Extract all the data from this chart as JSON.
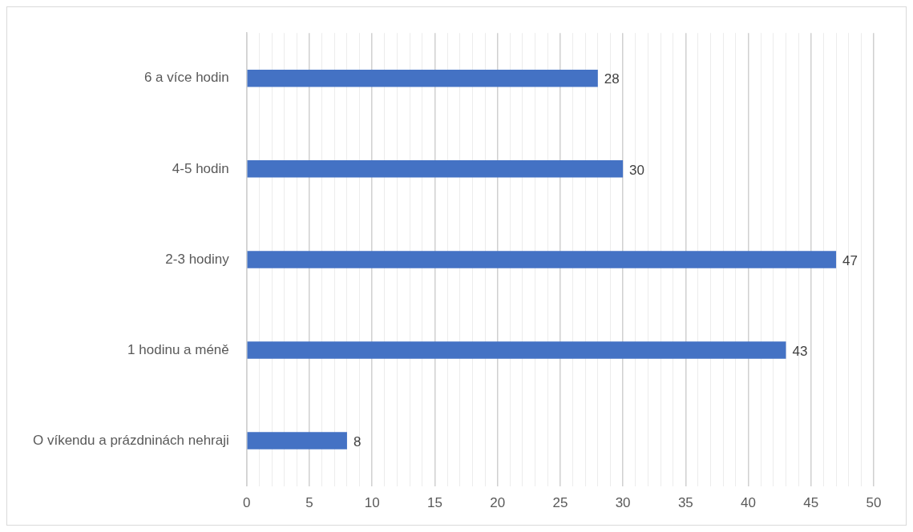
{
  "chart_data": {
    "type": "bar",
    "orientation": "horizontal",
    "categories": [
      "6 a více hodin",
      "4-5 hodin",
      "2-3 hodiny",
      "1 hodinu a méně",
      "O víkendu a prázdninách nehraji"
    ],
    "values": [
      28,
      30,
      47,
      43,
      8
    ],
    "color": "#4472c4",
    "data_labels": true,
    "grid": "x",
    "legend": false,
    "xlim": [
      0,
      50
    ],
    "xticks": [
      0,
      {
        "value": 1,
        "label": null
      },
      {
        "value": 2,
        "label": null
      },
      {
        "value": 3,
        "label": null
      },
      {
        "value": 4,
        "label": null
      },
      5,
      {
        "value": 6,
        "label": null
      },
      {
        "value": 7,
        "label": null
      },
      {
        "value": 8,
        "label": null
      },
      {
        "value": 9,
        "label": null
      },
      10,
      {
        "value": 11,
        "label": null
      },
      {
        "value": 12,
        "label": null
      },
      {
        "value": 13,
        "label": null
      },
      {
        "value": 14,
        "label": null
      },
      15,
      {
        "value": 16,
        "label": null
      },
      {
        "value": 17,
        "label": null
      },
      {
        "value": 18,
        "label": null
      },
      {
        "value": 19,
        "label": null
      },
      20,
      {
        "value": 21,
        "label": null
      },
      {
        "value": 22,
        "label": null
      },
      {
        "value": 23,
        "label": null
      },
      {
        "value": 24,
        "label": null
      },
      25,
      {
        "value": 26,
        "label": null
      },
      {
        "value": 27,
        "label": null
      },
      {
        "value": 28,
        "label": null
      },
      {
        "value": 29,
        "label": null
      },
      30,
      {
        "value": 31,
        "label": null
      },
      {
        "value": 32,
        "label": null
      },
      {
        "value": 33,
        "label": null
      },
      {
        "value": 34,
        "label": null
      },
      35,
      {
        "value": 36,
        "label": null
      },
      {
        "value": 37,
        "label": null
      },
      {
        "value": 38,
        "label": null
      },
      {
        "value": 39,
        "label": null
      },
      40,
      {
        "value": 41,
        "label": null
      },
      {
        "value": 42,
        "label": null
      },
      {
        "value": 43,
        "label": null
      },
      {
        "value": 44,
        "label": null
      },
      45,
      {
        "value": 46,
        "label": null
      },
      {
        "value": 47,
        "label": null
      },
      {
        "value": 48,
        "label": null
      },
      {
        "value": 49,
        "label": null
      },
      50
    ]
  }
}
